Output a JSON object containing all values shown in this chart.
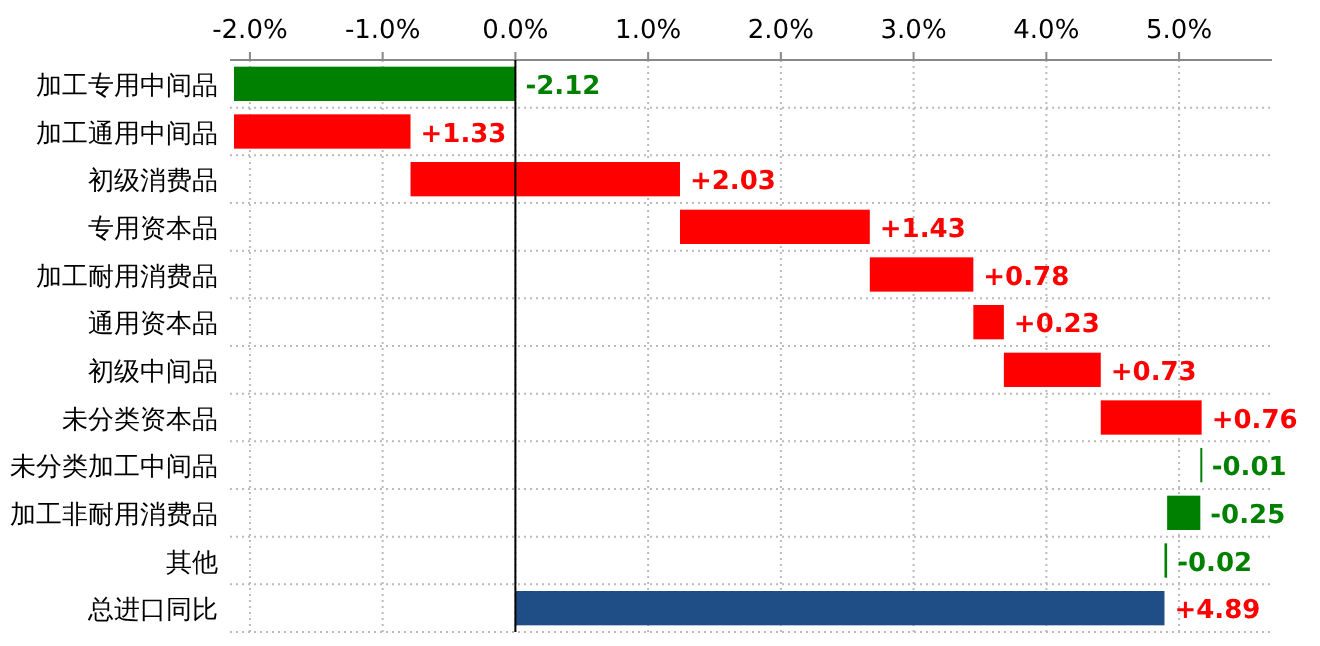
{
  "chart_data": {
    "type": "bar",
    "orientation": "horizontal",
    "categories": [
      "加工专用中间品",
      "加工通用中间品",
      "初级消费品",
      "专用资本品",
      "加工耐用消费品",
      "通用资本品",
      "初级中间品",
      "未分类资本品",
      "未分类加工中间品",
      "加工非耐用消费品",
      "其他",
      "总进口同比"
    ],
    "base": [
      0,
      -2.12,
      -0.79,
      1.24,
      2.67,
      3.45,
      3.68,
      4.41,
      5.17,
      5.16,
      4.91,
      0
    ],
    "values": [
      -2.12,
      1.33,
      2.03,
      1.43,
      0.78,
      0.23,
      0.73,
      0.76,
      -0.01,
      -0.25,
      -0.02,
      4.89
    ],
    "colors": [
      "#008000",
      "#ff0000",
      "#ff0000",
      "#ff0000",
      "#ff0000",
      "#ff0000",
      "#ff0000",
      "#ff0000",
      "#008000",
      "#008000",
      "#008000",
      "#1f4e86"
    ],
    "value_labels": [
      "-2.12",
      "+1.33",
      "+2.03",
      "+1.43",
      "+0.78",
      "+0.23",
      "+0.73",
      "+0.76",
      "-0.01",
      "-0.25",
      "-0.02",
      "+4.89"
    ],
    "xlim": [
      -2.15,
      5.7
    ],
    "xticks": [
      {
        "value": -2,
        "label": "-2.0%"
      },
      {
        "value": -1,
        "label": "-1.0%"
      },
      {
        "value": 0,
        "label": "0.0%"
      },
      {
        "value": 1,
        "label": "1.0%"
      },
      {
        "value": 2,
        "label": "2.0%"
      },
      {
        "value": 3,
        "label": "3.0%"
      },
      {
        "value": 4,
        "label": "4.0%"
      },
      {
        "value": 5,
        "label": "5.0%"
      }
    ],
    "grid": true
  }
}
